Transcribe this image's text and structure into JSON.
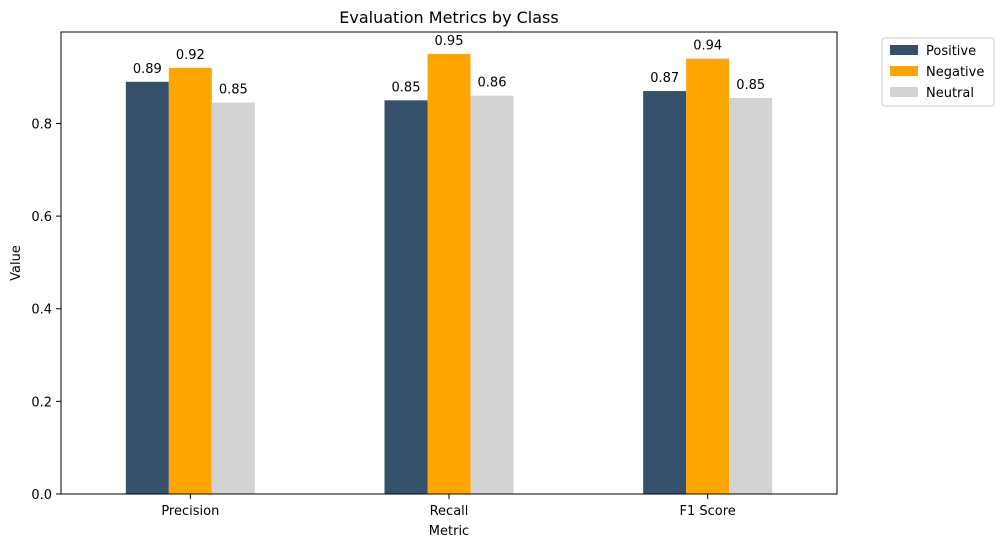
{
  "chart_data": {
    "type": "bar",
    "title": "Evaluation Metrics by Class",
    "xlabel": "Metric",
    "ylabel": "Value",
    "categories": [
      "Precision",
      "Recall",
      "F1 Score"
    ],
    "series": [
      {
        "name": "Positive",
        "color": "#34506b",
        "values": [
          0.89,
          0.85,
          0.87
        ],
        "labels": [
          "0.89",
          "0.85",
          "0.87"
        ]
      },
      {
        "name": "Negative",
        "color": "#ffa500",
        "values": [
          0.92,
          0.95,
          0.94
        ],
        "labels": [
          "0.92",
          "0.95",
          "0.94"
        ]
      },
      {
        "name": "Neutral",
        "color": "#d3d3d3",
        "values": [
          0.845,
          0.86,
          0.855
        ],
        "labels": [
          "0.85",
          "0.86",
          "0.85"
        ]
      }
    ],
    "yticks": [
      0.0,
      0.2,
      0.4,
      0.6,
      0.8
    ],
    "ytick_labels": [
      "0.0",
      "0.2",
      "0.4",
      "0.6",
      "0.8"
    ],
    "ylim": [
      0,
      0.9975
    ],
    "grid": false,
    "legend_position": "outside-top-right"
  }
}
